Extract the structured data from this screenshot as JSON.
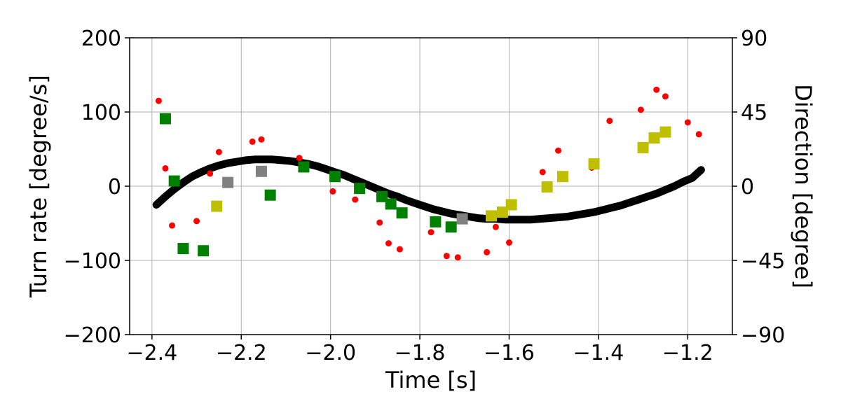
{
  "chart_data": {
    "type": "scatter",
    "xlabel": "Time [s]",
    "ylabel": "Turn rate [degree/s]",
    "y2label": "Direction [degree]",
    "xlim": [
      -2.45,
      -1.1
    ],
    "ylim": [
      -200,
      200
    ],
    "y2lim": [
      -90,
      90
    ],
    "grid": true,
    "x_ticks": [
      -2.4,
      -2.2,
      -2.0,
      -1.8,
      -1.6,
      -1.4,
      -1.2
    ],
    "x_tick_labels": [
      "−2.4",
      "−2.2",
      "−2.0",
      "−1.8",
      "−1.6",
      "−1.4",
      "−1.2"
    ],
    "y_ticks": [
      -200,
      -100,
      0,
      100,
      200
    ],
    "y_tick_labels": [
      "−200",
      "−100",
      "0",
      "100",
      "200"
    ],
    "y2_ticks": [
      -90,
      -45,
      0,
      45,
      90
    ],
    "y2_tick_labels": [
      "−90",
      "−45",
      "0",
      "45",
      "90"
    ],
    "colors": {
      "curve": "#000000",
      "dots": "#ff0000",
      "green": "#008000",
      "gray": "#808080",
      "yellow": "#bfbf00",
      "grid": "#b0b0b0"
    },
    "series": [
      {
        "marker": "line",
        "axis": "left",
        "color": "curve",
        "x": [
          -2.39,
          -2.37,
          -2.35,
          -2.33,
          -2.31,
          -2.29,
          -2.27,
          -2.25,
          -2.23,
          -2.21,
          -2.19,
          -2.17,
          -2.15,
          -2.13,
          -2.11,
          -2.09,
          -2.07,
          -2.05,
          -2.03,
          -2.01,
          -1.99,
          -1.97,
          -1.95,
          -1.93,
          -1.91,
          -1.89,
          -1.87,
          -1.85,
          -1.83,
          -1.81,
          -1.79,
          -1.77,
          -1.75,
          -1.73,
          -1.71,
          -1.69,
          -1.67,
          -1.65,
          -1.63,
          -1.61,
          -1.59,
          -1.57,
          -1.55,
          -1.53,
          -1.51,
          -1.49,
          -1.47,
          -1.45,
          -1.43,
          -1.41,
          -1.39,
          -1.37,
          -1.35,
          -1.33,
          -1.31,
          -1.29,
          -1.27,
          -1.25,
          -1.23,
          -1.21,
          -1.19,
          -1.17
        ],
        "y": [
          -25,
          -14,
          -4,
          5,
          13,
          19,
          24,
          28,
          31,
          33,
          35,
          36,
          36,
          36,
          35,
          34,
          32,
          30,
          27,
          23,
          19,
          15,
          10,
          5,
          0,
          -5,
          -10,
          -14,
          -19,
          -23,
          -27,
          -31,
          -34,
          -37,
          -39,
          -41,
          -43,
          -44,
          -44,
          -45,
          -45,
          -45,
          -45,
          -44,
          -43,
          -42,
          -41,
          -39,
          -37,
          -35,
          -32,
          -29,
          -26,
          -22,
          -18,
          -14,
          -10,
          -5,
          0,
          6,
          11,
          22
        ]
      },
      {
        "marker": "dot",
        "axis": "left",
        "color": "dots",
        "x": [
          -2.385,
          -2.37,
          -2.355,
          -2.3,
          -2.27,
          -2.25,
          -2.175,
          -2.155,
          -2.07,
          -1.995,
          -1.945,
          -1.89,
          -1.87,
          -1.845,
          -1.775,
          -1.74,
          -1.715,
          -1.65,
          -1.63,
          -1.6,
          -1.525,
          -1.49,
          -1.415,
          -1.375,
          -1.305,
          -1.27,
          -1.25,
          -1.2,
          -1.175
        ],
        "y": [
          115,
          24,
          -53,
          -47,
          17,
          46,
          60,
          63,
          38,
          -7,
          -18,
          -49,
          -77,
          -85,
          -62,
          -94,
          -96,
          -89,
          -55,
          -76,
          19,
          48,
          25,
          88,
          103,
          130,
          121,
          86,
          70
        ]
      },
      {
        "marker": "square",
        "axis": "left",
        "color": "green",
        "x": [
          -2.37,
          -2.35,
          -2.33,
          -2.285,
          -2.135,
          -2.06,
          -1.99,
          -1.935,
          -1.885,
          -1.865,
          -1.84,
          -1.765,
          -1.73
        ],
        "y": [
          91,
          7,
          -84,
          -87,
          -12,
          26,
          13,
          -3,
          -14,
          -24,
          -36,
          -48,
          -55
        ]
      },
      {
        "marker": "square",
        "axis": "left",
        "color": "gray",
        "x": [
          -2.23,
          -2.155,
          -1.705
        ],
        "y": [
          5,
          20,
          -44
        ]
      },
      {
        "marker": "square",
        "axis": "left",
        "color": "yellow",
        "x": [
          -2.255,
          -1.64,
          -1.615,
          -1.595,
          -1.515,
          -1.48,
          -1.41,
          -1.3,
          -1.275,
          -1.25
        ],
        "y": [
          -27,
          -40,
          -35,
          -25,
          -1,
          13,
          30,
          52,
          65,
          73
        ]
      }
    ]
  }
}
